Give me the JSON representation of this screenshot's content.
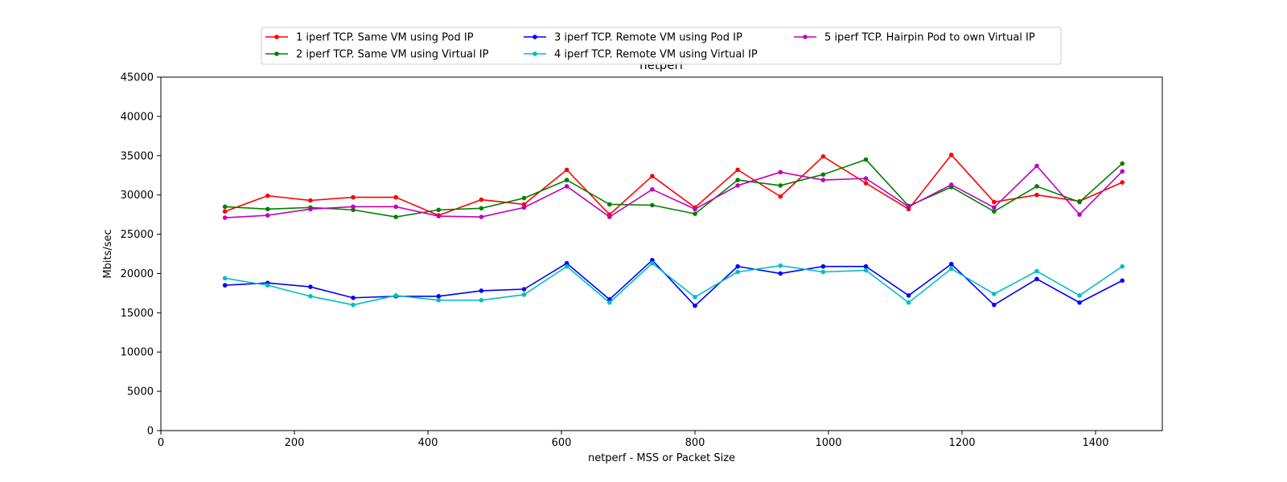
{
  "chart_data": {
    "type": "line",
    "title": "netperf",
    "xlabel": "netperf - MSS or Packet Size",
    "ylabel": "Mbits/sec",
    "xlim": [
      0,
      1500
    ],
    "ylim": [
      0,
      45000
    ],
    "xticks": [
      0,
      200,
      400,
      600,
      800,
      1000,
      1200,
      1400
    ],
    "yticks": [
      0,
      5000,
      10000,
      15000,
      20000,
      25000,
      30000,
      35000,
      40000,
      45000
    ],
    "grid": false,
    "legend_position": "top-center",
    "x": [
      96,
      160,
      224,
      288,
      352,
      416,
      480,
      544,
      608,
      672,
      736,
      800,
      864,
      928,
      992,
      1056,
      1120,
      1184,
      1248,
      1312,
      1376,
      1440
    ],
    "series": [
      {
        "name": "1 iperf TCP. Same VM using Pod IP",
        "color": "#ff0000",
        "values": [
          27900,
          29900,
          29300,
          29700,
          29700,
          27400,
          29400,
          28800,
          33200,
          27500,
          32400,
          28400,
          33200,
          29800,
          34900,
          31500,
          28200,
          35100,
          29100,
          30000,
          29200,
          31600
        ]
      },
      {
        "name": "2 iperf TCP. Same VM using Virtual IP",
        "color": "#008000",
        "values": [
          28500,
          28200,
          28400,
          28100,
          27200,
          28100,
          28300,
          29600,
          31900,
          28800,
          28700,
          27600,
          31900,
          31200,
          32600,
          34500,
          28600,
          31000,
          27900,
          31100,
          29100,
          34000
        ]
      },
      {
        "name": "3 iperf TCP. Remote VM using Pod IP",
        "color": "#0000ff",
        "values": [
          18500,
          18800,
          18300,
          16900,
          17100,
          17100,
          17800,
          18000,
          21300,
          16700,
          21700,
          15900,
          20900,
          20000,
          20900,
          20900,
          17200,
          21200,
          16000,
          19300,
          16300,
          19100
        ]
      },
      {
        "name": "4 iperf TCP. Remote VM using Virtual IP",
        "color": "#00bfbf",
        "values": [
          19400,
          18500,
          17100,
          16000,
          17200,
          16600,
          16600,
          17300,
          20900,
          16300,
          21300,
          17000,
          20200,
          21000,
          20200,
          20400,
          16300,
          20600,
          17400,
          20300,
          17200,
          20900
        ]
      },
      {
        "name": "5 iperf TCP. Hairpin Pod to own Virtual IP",
        "color": "#bf00bf",
        "values": [
          27100,
          27400,
          28200,
          28500,
          28500,
          27300,
          27200,
          28400,
          31100,
          27200,
          30700,
          28200,
          31200,
          32900,
          31900,
          32100,
          28500,
          31300,
          28400,
          33700,
          27500,
          33000
        ]
      }
    ]
  }
}
